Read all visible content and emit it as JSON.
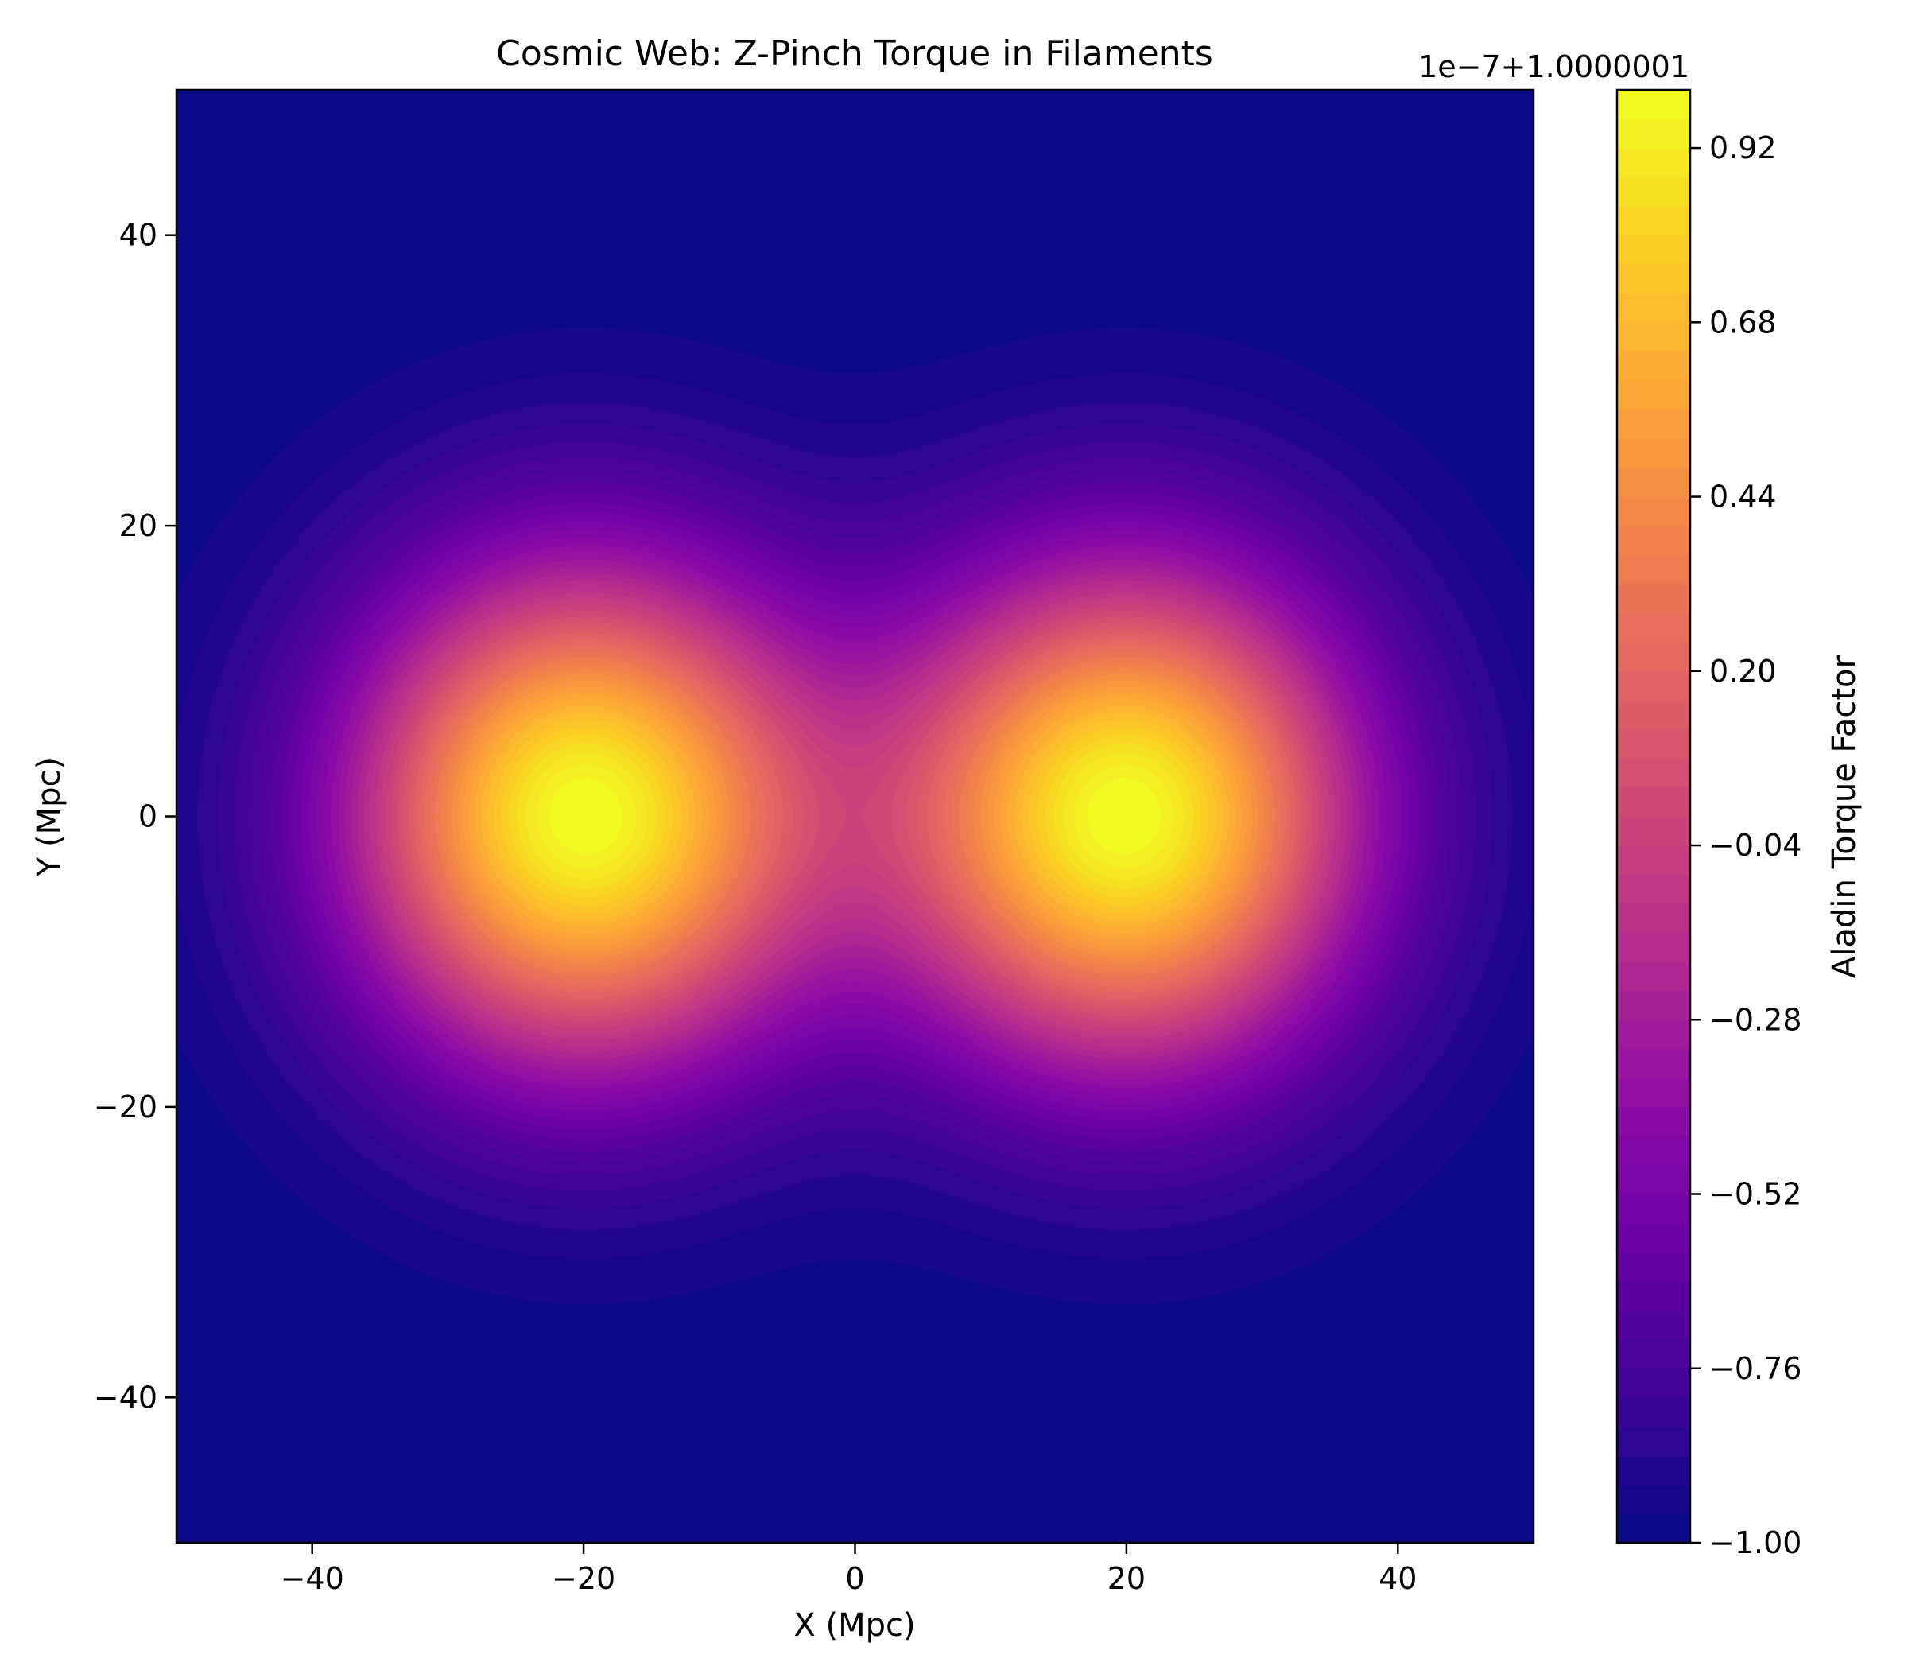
{
  "chart_data": {
    "type": "heatmap",
    "title": "Cosmic Web: Z-Pinch Torque in Filaments",
    "xlabel": "X (Mpc)",
    "ylabel": "Y (Mpc)",
    "xlim": [
      -50,
      50
    ],
    "ylim": [
      -50,
      50
    ],
    "x_ticks": [
      -40,
      -20,
      0,
      20,
      40
    ],
    "y_ticks": [
      -40,
      -20,
      0,
      20,
      40
    ],
    "grid": false,
    "colormap": "plasma",
    "levels": 50,
    "field": {
      "description_of_peaks": "two radial peaks",
      "peaks": [
        {
          "x": -20,
          "y": 0,
          "value": 1.0
        },
        {
          "x": 20,
          "y": 0,
          "value": 1.0
        }
      ],
      "falloff_scale": 12,
      "background_value": -1.0
    },
    "colorbar": {
      "label": "Aladin Torque Factor",
      "offset_text": "1e−7+1.0000001",
      "range": [
        -1.0,
        1.0
      ],
      "ticks": [
        -1.0,
        -0.76,
        -0.52,
        -0.28,
        -0.04,
        0.2,
        0.44,
        0.68,
        0.92
      ],
      "tick_labels": [
        "−1.00",
        "−0.76",
        "−0.52",
        "−0.28",
        "−0.04",
        "0.20",
        "0.44",
        "0.68",
        "0.92"
      ]
    }
  },
  "labels": {
    "x_tick_labels": [
      "−40",
      "−20",
      "0",
      "20",
      "40"
    ],
    "y_tick_labels": [
      "−40",
      "−20",
      "0",
      "20",
      "40"
    ]
  }
}
